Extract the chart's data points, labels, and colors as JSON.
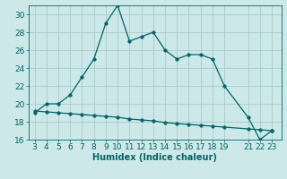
{
  "xlabel": "Humidex (Indice chaleur)",
  "background_color": "#cce8e8",
  "line_color": "#006666",
  "grid_color": "#aacccc",
  "x_main": [
    3,
    4,
    5,
    6,
    7,
    8,
    9,
    10,
    11,
    12,
    13,
    14,
    15,
    16,
    17,
    18,
    19,
    21,
    22,
    23
  ],
  "y_main": [
    19,
    20,
    20,
    21,
    23,
    25,
    29,
    31,
    27,
    27.5,
    28,
    26,
    25,
    25.5,
    25.5,
    25,
    22,
    18.5,
    16,
    17
  ],
  "x_secondary": [
    3,
    4,
    5,
    6,
    7,
    8,
    9,
    10,
    11,
    12,
    13,
    14,
    15,
    16,
    17,
    18,
    19,
    21,
    22,
    23
  ],
  "y_secondary": [
    19.2,
    19.1,
    19.0,
    18.9,
    18.8,
    18.7,
    18.6,
    18.5,
    18.3,
    18.2,
    18.1,
    17.9,
    17.8,
    17.7,
    17.6,
    17.5,
    17.4,
    17.2,
    17.1,
    17.0
  ],
  "xlim": [
    2.5,
    23.8
  ],
  "ylim": [
    16,
    31
  ],
  "yticks": [
    16,
    18,
    20,
    22,
    24,
    26,
    28,
    30
  ],
  "xticks": [
    3,
    4,
    5,
    6,
    7,
    8,
    9,
    10,
    11,
    12,
    13,
    14,
    15,
    16,
    17,
    18,
    19,
    21,
    22,
    23
  ],
  "marker_size": 2.5,
  "linewidth": 0.9,
  "font_size": 6.5
}
